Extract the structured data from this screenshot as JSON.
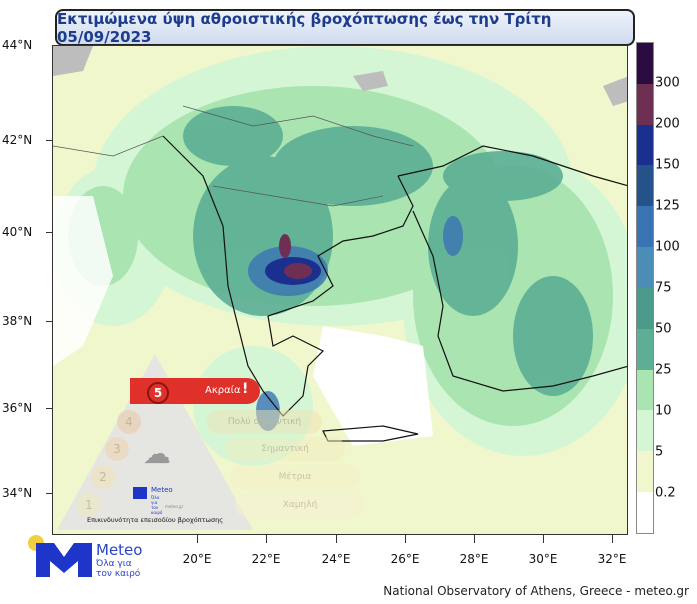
{
  "title": "Εκτιμώμενα ύψη αθροιστικής βροχόπτωσης έως την Τρίτη 05/09/2023",
  "lat_labels": [
    "44°N",
    "42°N",
    "40°N",
    "38°N",
    "36°N",
    "34°N"
  ],
  "lon_labels": [
    "20°E",
    "22°E",
    "24°E",
    "26°E",
    "28°E",
    "30°E",
    "32°E"
  ],
  "colorbar": {
    "labels": [
      "300",
      "200",
      "150",
      "125",
      "100",
      "75",
      "50",
      "25",
      "10",
      "5",
      "0.2"
    ],
    "colors": [
      "#2b0b40",
      "#6e2f52",
      "#1b2f8e",
      "#26528a",
      "#3a73b4",
      "#4c8db8",
      "#4b9a8a",
      "#5cae95",
      "#a9e4b1",
      "#d5f6d5",
      "#f1f7cd",
      "#ffffff"
    ]
  },
  "warning": {
    "levels": [
      {
        "num": "5",
        "label": "Ακραία",
        "active": true
      },
      {
        "num": "4",
        "label": "Πολύ σημαντική",
        "active": false
      },
      {
        "num": "3",
        "label": "Σημαντική",
        "active": false
      },
      {
        "num": "2",
        "label": "Μέτρια",
        "active": false
      },
      {
        "num": "1",
        "label": "Χαμηλή",
        "active": false
      }
    ],
    "caption": "Επικινδυνότητα επεισοδίου βροχόπτωσης",
    "logo_name": "Meteo",
    "logo_tag": "Όλα για τον καιρό",
    "logo_sub": "meteo.gr",
    "alert_icon": "exclamation-icon",
    "weather_icon": "rain-cloud-icon"
  },
  "logo": {
    "name": "Meteo",
    "tagline_1": "Όλα για",
    "tagline_2": "τον καιρό",
    "brand_color": "#1d35c9",
    "sun_color": "#f2cf3c"
  },
  "credit": "National Observatory of Athens, Greece - meteo.gr"
}
